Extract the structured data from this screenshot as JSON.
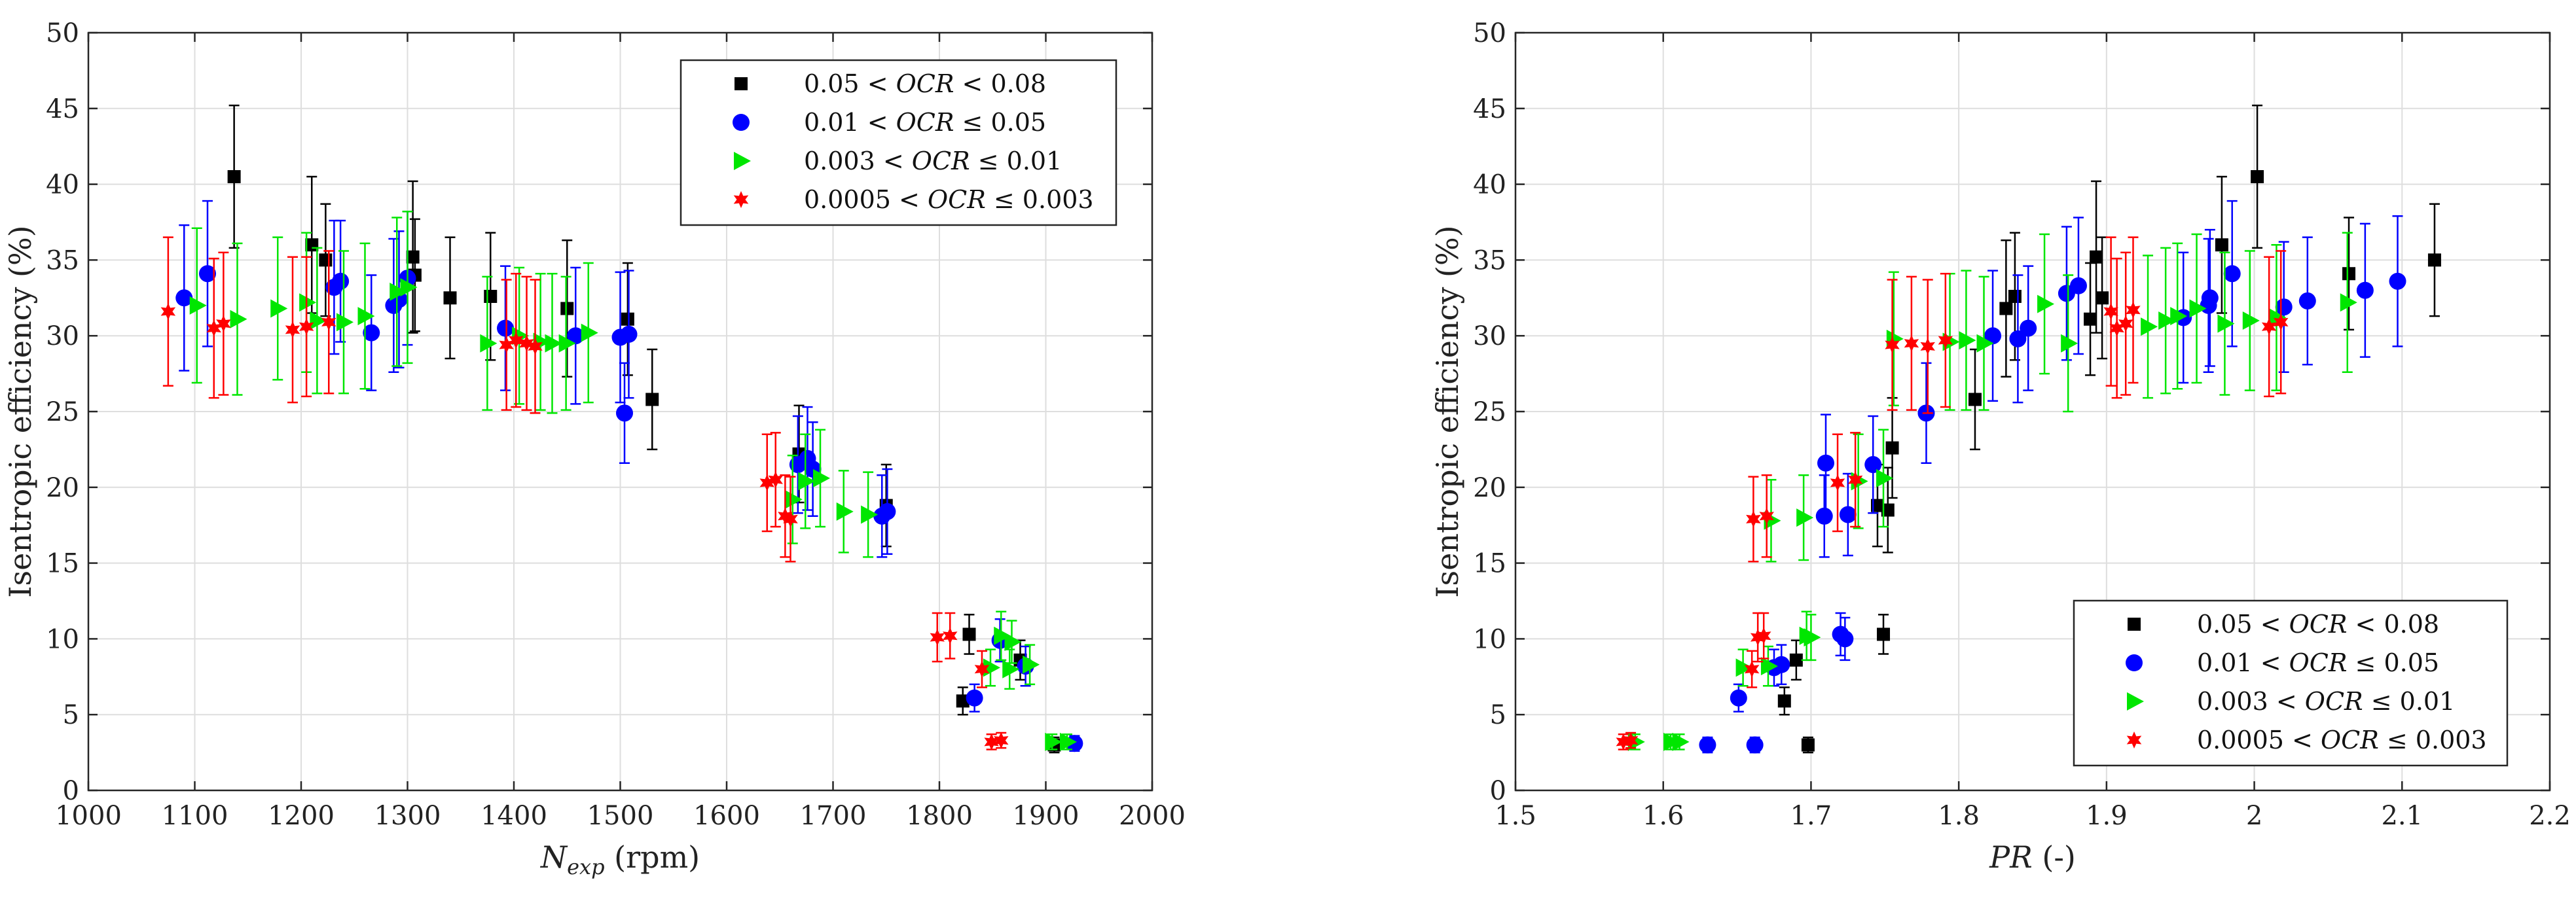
{
  "chart_data": [
    {
      "type": "scatter",
      "xlabel": "N_exp (rpm)",
      "xlabel_parts": {
        "symbol": "N",
        "subscript": "exp",
        "unit": " (rpm)"
      },
      "ylabel": "Isentropic efficiency (%)",
      "xlim": [
        1000,
        2000
      ],
      "ylim": [
        0,
        50
      ],
      "xticks": [
        1000,
        1100,
        1200,
        1300,
        1400,
        1500,
        1600,
        1700,
        1800,
        1900,
        2000
      ],
      "yticks": [
        0,
        5,
        10,
        15,
        20,
        25,
        30,
        35,
        40,
        45,
        50
      ],
      "grid": true,
      "legend_position": "top-right",
      "error_bars": true,
      "series": [
        {
          "name": "0.05 < OCR < 0.08",
          "label_parts": [
            "0.05",
            "OCR",
            "0.08"
          ],
          "relations": [
            "<",
            "<"
          ],
          "marker": "square",
          "color": "#000000",
          "points": [
            [
              1137,
              40.5,
              4.7
            ],
            [
              1210,
              36.0,
              4.5
            ],
            [
              1223,
              35.0,
              3.7
            ],
            [
              1305,
              35.2,
              5.0
            ],
            [
              1307,
              34.0,
              3.7
            ],
            [
              1340,
              32.5,
              4.0
            ],
            [
              1378,
              32.6,
              4.2
            ],
            [
              1450,
              31.8,
              4.5
            ],
            [
              1507,
              31.1,
              3.7
            ],
            [
              1530,
              25.8,
              3.3
            ],
            [
              1668,
              22.2,
              3.2
            ],
            [
              1750,
              18.8,
              2.7
            ],
            [
              1822,
              5.9,
              0.9
            ],
            [
              1828,
              10.3,
              1.3
            ],
            [
              1876,
              8.6,
              1.3
            ],
            [
              1908,
              3.0,
              0.5
            ]
          ]
        },
        {
          "name": "0.01 < OCR ≤ 0.05",
          "label_parts": [
            "0.01",
            "OCR",
            "0.05"
          ],
          "relations": [
            "<",
            "≤"
          ],
          "marker": "circle",
          "color": "#0000ff",
          "points": [
            [
              1090,
              32.5,
              4.8
            ],
            [
              1112,
              34.1,
              4.8
            ],
            [
              1231,
              33.2,
              4.4
            ],
            [
              1237,
              33.6,
              4.0
            ],
            [
              1266,
              30.2,
              3.8
            ],
            [
              1287,
              32.0,
              4.4
            ],
            [
              1292,
              32.4,
              4.5
            ],
            [
              1300,
              33.8,
              4.4
            ],
            [
              1392,
              30.5,
              4.1
            ],
            [
              1458,
              30.0,
              4.5
            ],
            [
              1500,
              29.9,
              4.3
            ],
            [
              1504,
              24.9,
              3.3
            ],
            [
              1508,
              30.1,
              4.2
            ],
            [
              1667,
              21.5,
              3.2
            ],
            [
              1676,
              21.9,
              3.4
            ],
            [
              1681,
              21.2,
              3.1
            ],
            [
              1746,
              18.1,
              2.7
            ],
            [
              1751,
              18.4,
              2.8
            ],
            [
              1833,
              6.1,
              0.9
            ],
            [
              1857,
              9.9,
              1.4
            ],
            [
              1881,
              8.2,
              1.3
            ],
            [
              1927,
              3.1,
              0.5
            ]
          ]
        },
        {
          "name": "0.003 < OCR ≤ 0.01",
          "label_parts": [
            "0.003",
            "OCR",
            "0.01"
          ],
          "relations": [
            "<",
            "≤"
          ],
          "marker": "triangle",
          "color": "#00e600",
          "points": [
            [
              1102,
              32.0,
              5.1
            ],
            [
              1140,
              31.1,
              5.0
            ],
            [
              1178,
              31.8,
              4.7
            ],
            [
              1205,
              32.2,
              4.6
            ],
            [
              1215,
              31.0,
              4.8
            ],
            [
              1240,
              30.9,
              4.7
            ],
            [
              1260,
              31.3,
              4.8
            ],
            [
              1290,
              32.9,
              4.9
            ],
            [
              1300,
              33.2,
              5.0
            ],
            [
              1375,
              29.5,
              4.4
            ],
            [
              1405,
              30.0,
              4.5
            ],
            [
              1425,
              29.6,
              4.5
            ],
            [
              1436,
              29.5,
              4.6
            ],
            [
              1449,
              29.5,
              4.4
            ],
            [
              1470,
              30.2,
              4.6
            ],
            [
              1662,
              19.2,
              2.9
            ],
            [
              1674,
              20.4,
              3.1
            ],
            [
              1688,
              20.6,
              3.2
            ],
            [
              1710,
              18.4,
              2.7
            ],
            [
              1733,
              18.2,
              2.8
            ],
            [
              1848,
              8.1,
              1.2
            ],
            [
              1858,
              10.2,
              1.6
            ],
            [
              1866,
              8.0,
              1.3
            ],
            [
              1868,
              9.8,
              1.4
            ],
            [
              1885,
              8.3,
              1.3
            ],
            [
              1906,
              3.2,
              0.5
            ],
            [
              1920,
              3.2,
              0.5
            ]
          ]
        },
        {
          "name": "0.0005 < OCR ≤ 0.003",
          "label_parts": [
            "0.0005",
            "OCR",
            "0.003"
          ],
          "relations": [
            "<",
            "≤"
          ],
          "marker": "star",
          "color": "#ff0000",
          "points": [
            [
              1075,
              31.6,
              4.9
            ],
            [
              1118,
              30.5,
              4.6
            ],
            [
              1127,
              30.8,
              4.7
            ],
            [
              1192,
              30.4,
              4.8
            ],
            [
              1205,
              30.6,
              4.6
            ],
            [
              1226,
              30.9,
              4.7
            ],
            [
              1393,
              29.4,
              4.3
            ],
            [
              1402,
              29.7,
              4.4
            ],
            [
              1412,
              29.5,
              4.4
            ],
            [
              1420,
              29.3,
              4.4
            ],
            [
              1638,
              20.3,
              3.2
            ],
            [
              1646,
              20.5,
              3.1
            ],
            [
              1655,
              18.1,
              2.7
            ],
            [
              1660,
              17.9,
              2.8
            ],
            [
              1798,
              10.1,
              1.6
            ],
            [
              1810,
              10.2,
              1.5
            ],
            [
              1840,
              8.0,
              1.2
            ],
            [
              1849,
              3.2,
              0.5
            ],
            [
              1858,
              3.3,
              0.5
            ]
          ]
        }
      ]
    },
    {
      "type": "scatter",
      "xlabel": "PR (-)",
      "xlabel_parts": {
        "symbol": "PR",
        "subscript": "",
        "unit": " (-)"
      },
      "ylabel": "Isentropic efficiency (%)",
      "xlim": [
        1.5,
        2.2
      ],
      "ylim": [
        0,
        50
      ],
      "xticks": [
        1.5,
        1.6,
        1.7,
        1.8,
        1.9,
        2,
        2.1,
        2.2
      ],
      "yticks": [
        0,
        5,
        10,
        15,
        20,
        25,
        30,
        35,
        40,
        45,
        50
      ],
      "grid": true,
      "legend_position": "bottom-right",
      "error_bars": true,
      "series": [
        {
          "name": "0.05 < OCR < 0.08",
          "label_parts": [
            "0.05",
            "OCR",
            "0.08"
          ],
          "relations": [
            "<",
            "<"
          ],
          "marker": "square",
          "color": "#000000",
          "points": [
            [
              1.698,
              3.0,
              0.5
            ],
            [
              1.682,
              5.9,
              0.9
            ],
            [
              1.749,
              10.3,
              1.3
            ],
            [
              1.745,
              18.8,
              2.7
            ],
            [
              1.752,
              18.5,
              2.8
            ],
            [
              1.755,
              22.6,
              3.3
            ],
            [
              1.811,
              25.8,
              3.3
            ],
            [
              1.832,
              31.8,
              4.5
            ],
            [
              1.838,
              32.6,
              4.2
            ],
            [
              1.889,
              31.1,
              3.7
            ],
            [
              1.893,
              35.2,
              5.0
            ],
            [
              1.897,
              32.5,
              4.0
            ],
            [
              1.978,
              36.0,
              4.5
            ],
            [
              2.002,
              40.5,
              4.7
            ],
            [
              2.064,
              34.1,
              3.7
            ],
            [
              2.122,
              35.0,
              3.7
            ],
            [
              1.69,
              8.6,
              1.3
            ]
          ]
        },
        {
          "name": "0.01 < OCR ≤ 0.05",
          "label_parts": [
            "0.01",
            "OCR",
            "0.05"
          ],
          "relations": [
            "<",
            "≤"
          ],
          "marker": "circle",
          "color": "#0000ff",
          "points": [
            [
              1.63,
              3.0,
              0.5
            ],
            [
              1.651,
              6.1,
              0.9
            ],
            [
              1.662,
              3.0,
              0.5
            ],
            [
              1.675,
              8.1,
              1.2
            ],
            [
              1.68,
              8.3,
              1.3
            ],
            [
              1.709,
              18.1,
              2.7
            ],
            [
              1.71,
              21.6,
              3.2
            ],
            [
              1.72,
              10.3,
              1.4
            ],
            [
              1.723,
              10.0,
              1.4
            ],
            [
              1.725,
              18.2,
              2.7
            ],
            [
              1.742,
              21.5,
              3.2
            ],
            [
              1.778,
              24.9,
              3.3
            ],
            [
              1.823,
              30.0,
              4.3
            ],
            [
              1.84,
              29.8,
              4.2
            ],
            [
              1.847,
              30.5,
              4.1
            ],
            [
              1.873,
              32.8,
              4.4
            ],
            [
              1.881,
              33.3,
              4.5
            ],
            [
              1.952,
              31.2,
              4.3
            ],
            [
              1.969,
              32.0,
              4.4
            ],
            [
              1.97,
              32.5,
              4.5
            ],
            [
              1.985,
              34.1,
              4.8
            ],
            [
              2.02,
              31.9,
              4.3
            ],
            [
              2.036,
              32.3,
              4.2
            ],
            [
              2.075,
              33.0,
              4.4
            ],
            [
              2.097,
              33.6,
              4.3
            ]
          ]
        },
        {
          "name": "0.003 < OCR ≤ 0.01",
          "label_parts": [
            "0.003",
            "OCR",
            "0.01"
          ],
          "relations": [
            "<",
            "≤"
          ],
          "marker": "triangle",
          "color": "#00e600",
          "points": [
            [
              1.581,
              3.2,
              0.5
            ],
            [
              1.605,
              3.2,
              0.5
            ],
            [
              1.611,
              3.2,
              0.5
            ],
            [
              1.654,
              8.1,
              1.2
            ],
            [
              1.671,
              8.2,
              1.3
            ],
            [
              1.673,
              17.8,
              2.7
            ],
            [
              1.695,
              18.0,
              2.8
            ],
            [
              1.697,
              10.2,
              1.6
            ],
            [
              1.7,
              10.1,
              1.5
            ],
            [
              1.732,
              20.4,
              3.1
            ],
            [
              1.749,
              20.6,
              3.2
            ],
            [
              1.756,
              29.8,
              4.4
            ],
            [
              1.794,
              29.6,
              4.5
            ],
            [
              1.805,
              29.7,
              4.6
            ],
            [
              1.817,
              29.5,
              4.4
            ],
            [
              1.858,
              32.1,
              4.6
            ],
            [
              1.874,
              29.5,
              4.5
            ],
            [
              1.928,
              30.6,
              4.7
            ],
            [
              1.94,
              31.0,
              4.8
            ],
            [
              1.948,
              31.3,
              4.8
            ],
            [
              1.961,
              31.8,
              4.9
            ],
            [
              1.98,
              30.8,
              4.7
            ],
            [
              1.997,
              31.0,
              4.6
            ],
            [
              2.015,
              31.2,
              4.8
            ],
            [
              2.063,
              32.2,
              4.6
            ]
          ]
        },
        {
          "name": "0.0005 < OCR ≤ 0.003",
          "label_parts": [
            "0.0005",
            "OCR",
            "0.003"
          ],
          "relations": [
            "<",
            "≤"
          ],
          "marker": "star",
          "color": "#ff0000",
          "points": [
            [
              1.573,
              3.2,
              0.5
            ],
            [
              1.578,
              3.3,
              0.5
            ],
            [
              1.66,
              8.0,
              1.2
            ],
            [
              1.661,
              17.9,
              2.8
            ],
            [
              1.664,
              10.1,
              1.6
            ],
            [
              1.668,
              10.2,
              1.5
            ],
            [
              1.67,
              18.1,
              2.7
            ],
            [
              1.718,
              20.3,
              3.2
            ],
            [
              1.73,
              20.5,
              3.1
            ],
            [
              1.755,
              29.4,
              4.3
            ],
            [
              1.768,
              29.5,
              4.4
            ],
            [
              1.779,
              29.3,
              4.4
            ],
            [
              1.791,
              29.7,
              4.4
            ],
            [
              1.903,
              31.6,
              4.9
            ],
            [
              1.907,
              30.5,
              4.6
            ],
            [
              1.913,
              30.8,
              4.7
            ],
            [
              1.918,
              31.7,
              4.8
            ],
            [
              2.01,
              30.6,
              4.6
            ],
            [
              2.018,
              30.9,
              4.7
            ]
          ]
        }
      ]
    }
  ]
}
